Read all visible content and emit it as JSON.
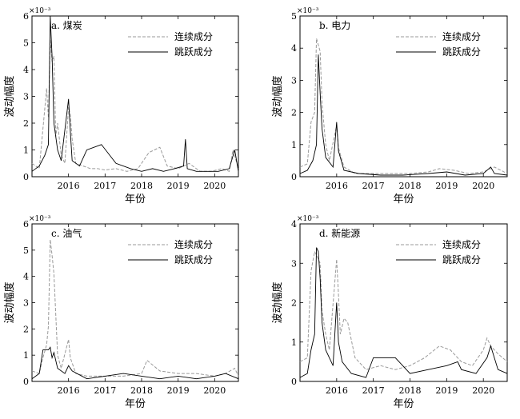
{
  "chart_data": [
    {
      "type": "line",
      "panel": "a",
      "title": "a. 煤炭",
      "xlabel": "年份",
      "ylabel": "波动幅度",
      "y_multiplier": "×10⁻³",
      "xlim": [
        2015.0,
        2020.65
      ],
      "ylim": [
        0,
        6
      ],
      "yticks": [
        "0",
        "1",
        "2",
        "3",
        "4",
        "5",
        "6"
      ],
      "xticks": [
        "2016",
        "2017",
        "2018",
        "2019",
        "2020"
      ],
      "legend": {
        "position": "top-right",
        "entries": [
          "连续成分",
          "跳跃成分"
        ]
      },
      "series": [
        {
          "name": "连续成分",
          "style": "dashed",
          "color": "#9a9a9a",
          "x": [
            2015.0,
            2015.2,
            2015.3,
            2015.4,
            2015.45,
            2015.5,
            2015.55,
            2015.6,
            2015.65,
            2015.7,
            2015.8,
            2015.9,
            2016.0,
            2016.05,
            2016.1,
            2016.2,
            2016.4,
            2016.6,
            2016.8,
            2017.0,
            2017.3,
            2017.6,
            2017.9,
            2018.2,
            2018.5,
            2018.7,
            2019.0,
            2019.3,
            2019.6,
            2019.9,
            2020.2,
            2020.4,
            2020.5,
            2020.65
          ],
          "y": [
            0.5,
            0.3,
            1.8,
            3.3,
            2.2,
            5.1,
            4.3,
            4.5,
            1.5,
            2.0,
            0.8,
            0.5,
            2.6,
            2.3,
            1.4,
            0.5,
            0.4,
            0.3,
            0.3,
            0.25,
            0.3,
            0.2,
            0.3,
            0.9,
            1.1,
            0.4,
            0.3,
            0.5,
            0.2,
            0.2,
            0.3,
            0.2,
            1.0,
            0.3
          ]
        },
        {
          "name": "跳跃成分",
          "style": "solid",
          "color": "#000000",
          "x": [
            2015.0,
            2015.2,
            2015.35,
            2015.45,
            2015.5,
            2015.55,
            2015.6,
            2015.7,
            2015.8,
            2016.0,
            2016.05,
            2016.1,
            2016.3,
            2016.5,
            2016.9,
            2017.3,
            2017.7,
            2018.0,
            2018.3,
            2018.6,
            2018.9,
            2019.15,
            2019.2,
            2019.25,
            2019.5,
            2019.8,
            2020.1,
            2020.4,
            2020.55,
            2020.65
          ],
          "y": [
            0.2,
            0.4,
            0.8,
            1.2,
            6.0,
            4.5,
            2.0,
            1.0,
            0.6,
            2.9,
            1.7,
            0.6,
            0.4,
            1.0,
            1.2,
            0.5,
            0.3,
            0.2,
            0.3,
            0.2,
            0.3,
            0.4,
            1.4,
            0.3,
            0.2,
            0.2,
            0.2,
            0.3,
            1.0,
            0.2
          ]
        }
      ]
    },
    {
      "type": "line",
      "panel": "b",
      "title": "b. 电力",
      "xlabel": "年份",
      "ylabel": "波动幅度",
      "y_multiplier": "×10⁻³",
      "xlim": [
        2015.0,
        2020.65
      ],
      "ylim": [
        0,
        5
      ],
      "yticks": [
        "0",
        "1",
        "2",
        "3",
        "4",
        "5"
      ],
      "xticks": [
        "2016",
        "2017",
        "2018",
        "2019",
        "2020"
      ],
      "legend": {
        "position": "top-right",
        "entries": [
          "连续成分",
          "跳跃成分"
        ]
      },
      "series": [
        {
          "name": "连续成分",
          "style": "dashed",
          "color": "#9a9a9a",
          "x": [
            2015.0,
            2015.2,
            2015.3,
            2015.4,
            2015.45,
            2015.5,
            2015.55,
            2015.6,
            2015.7,
            2015.8,
            2016.0,
            2016.05,
            2016.2,
            2016.5,
            2017.0,
            2017.5,
            2018.0,
            2018.5,
            2018.8,
            2019.2,
            2019.6,
            2020.0,
            2020.3,
            2020.65
          ],
          "y": [
            0.3,
            0.4,
            1.7,
            2.0,
            4.3,
            4.1,
            3.9,
            2.3,
            1.0,
            0.5,
            1.6,
            0.9,
            0.3,
            0.1,
            0.1,
            0.1,
            0.1,
            0.15,
            0.25,
            0.2,
            0.1,
            0.15,
            0.3,
            0.1
          ]
        },
        {
          "name": "跳跃成分",
          "style": "solid",
          "color": "#000000",
          "x": [
            2015.0,
            2015.2,
            2015.35,
            2015.45,
            2015.5,
            2015.55,
            2015.6,
            2015.7,
            2015.9,
            2016.0,
            2016.05,
            2016.2,
            2016.6,
            2017.2,
            2017.8,
            2018.5,
            2019.0,
            2019.5,
            2020.0,
            2020.2,
            2020.3,
            2020.65
          ],
          "y": [
            0.1,
            0.2,
            0.5,
            1.0,
            3.8,
            2.6,
            1.5,
            0.6,
            0.3,
            1.7,
            0.8,
            0.2,
            0.1,
            0.05,
            0.05,
            0.1,
            0.15,
            0.05,
            0.1,
            0.3,
            0.1,
            0.05
          ]
        }
      ]
    },
    {
      "type": "line",
      "panel": "c",
      "title": "c. 油气",
      "xlabel": "年份",
      "ylabel": "波动幅度",
      "y_multiplier": "×10⁻³",
      "xlim": [
        2015.0,
        2020.65
      ],
      "ylim": [
        0,
        6
      ],
      "yticks": [
        "0",
        "1",
        "2",
        "3",
        "4",
        "5",
        "6"
      ],
      "xticks": [
        "2016",
        "2017",
        "2018",
        "2019",
        "2020"
      ],
      "legend": {
        "position": "top-right",
        "entries": [
          "连续成分",
          "跳跃成分"
        ]
      },
      "series": [
        {
          "name": "连续成分",
          "style": "dashed",
          "color": "#9a9a9a",
          "x": [
            2015.0,
            2015.2,
            2015.3,
            2015.4,
            2015.45,
            2015.5,
            2015.55,
            2015.6,
            2015.7,
            2015.8,
            2016.0,
            2016.05,
            2016.2,
            2016.5,
            2017.0,
            2017.5,
            2018.0,
            2018.15,
            2018.5,
            2019.0,
            2019.5,
            2020.0,
            2020.3,
            2020.55,
            2020.65
          ],
          "y": [
            0.4,
            0.3,
            0.9,
            1.4,
            2.1,
            5.4,
            4.8,
            4.1,
            1.0,
            0.5,
            1.6,
            0.9,
            0.3,
            0.2,
            0.2,
            0.2,
            0.3,
            0.8,
            0.4,
            0.3,
            0.3,
            0.2,
            0.3,
            0.5,
            0.2
          ]
        },
        {
          "name": "跳跃成分",
          "style": "solid",
          "color": "#000000",
          "x": [
            2015.0,
            2015.2,
            2015.3,
            2015.45,
            2015.5,
            2015.55,
            2015.6,
            2015.7,
            2015.9,
            2016.0,
            2016.1,
            2016.5,
            2017.0,
            2017.5,
            2018.0,
            2018.5,
            2019.0,
            2019.5,
            2020.0,
            2020.3,
            2020.65
          ],
          "y": [
            0.1,
            0.3,
            1.2,
            1.2,
            1.3,
            0.9,
            1.1,
            0.5,
            0.3,
            0.6,
            0.4,
            0.1,
            0.2,
            0.3,
            0.2,
            0.1,
            0.2,
            0.1,
            0.2,
            0.3,
            0.1
          ]
        }
      ]
    },
    {
      "type": "line",
      "panel": "d",
      "title": "d. 新能源",
      "xlabel": "年份",
      "ylabel": "波动幅度",
      "y_multiplier": "×10⁻³",
      "xlim": [
        2015.0,
        2020.65
      ],
      "ylim": [
        0,
        4
      ],
      "yticks": [
        "0",
        "1",
        "2",
        "3",
        "4"
      ],
      "xticks": [
        "2016",
        "2017",
        "2018",
        "2019",
        "2020"
      ],
      "legend": {
        "position": "top-right",
        "entries": [
          "连续成分",
          "跳跃成分"
        ]
      },
      "series": [
        {
          "name": "连续成分",
          "style": "dashed",
          "color": "#9a9a9a",
          "x": [
            2015.0,
            2015.2,
            2015.3,
            2015.4,
            2015.45,
            2015.5,
            2015.55,
            2015.6,
            2015.7,
            2015.8,
            2016.0,
            2016.05,
            2016.1,
            2016.2,
            2016.3,
            2016.5,
            2016.8,
            2017.2,
            2017.6,
            2018.0,
            2018.4,
            2018.8,
            2019.1,
            2019.4,
            2019.7,
            2020.0,
            2020.1,
            2020.2,
            2020.4,
            2020.65
          ],
          "y": [
            0.5,
            0.6,
            2.8,
            3.3,
            3.2,
            3.1,
            3.0,
            1.8,
            1.2,
            0.8,
            3.1,
            2.2,
            1.2,
            1.6,
            1.5,
            0.6,
            0.3,
            0.4,
            0.3,
            0.4,
            0.6,
            0.9,
            0.8,
            0.5,
            0.4,
            0.8,
            1.1,
            0.9,
            0.7,
            0.5
          ]
        },
        {
          "name": "跳跃成分",
          "style": "solid",
          "color": "#000000",
          "x": [
            2015.0,
            2015.2,
            2015.3,
            2015.4,
            2015.45,
            2015.5,
            2015.55,
            2015.6,
            2015.7,
            2015.9,
            2016.0,
            2016.05,
            2016.15,
            2016.4,
            2016.8,
            2017.0,
            2017.6,
            2018.0,
            2018.5,
            2019.0,
            2019.3,
            2019.4,
            2019.8,
            2020.1,
            2020.2,
            2020.4,
            2020.65
          ],
          "y": [
            0.1,
            0.2,
            0.8,
            1.2,
            3.4,
            3.3,
            2.6,
            1.5,
            0.8,
            0.4,
            2.0,
            1.0,
            0.5,
            0.2,
            0.1,
            0.6,
            0.6,
            0.2,
            0.3,
            0.4,
            0.5,
            0.3,
            0.2,
            0.6,
            0.9,
            0.3,
            0.2
          ]
        }
      ]
    }
  ]
}
